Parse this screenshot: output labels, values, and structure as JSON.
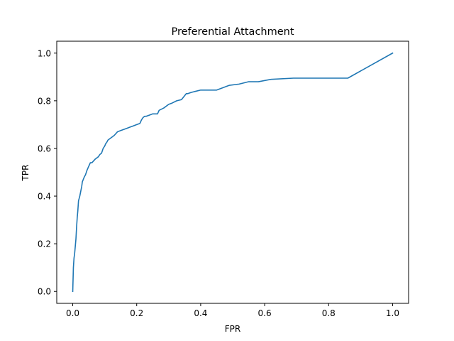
{
  "chart_data": {
    "type": "line",
    "title": "Preferential Attachment",
    "xlabel": "FPR",
    "ylabel": "TPR",
    "xlim": [
      -0.05,
      1.05
    ],
    "ylim": [
      -0.05,
      1.05
    ],
    "xticks": [
      0.0,
      0.2,
      0.4,
      0.6,
      0.8,
      1.0
    ],
    "yticks": [
      0.0,
      0.2,
      0.4,
      0.6,
      0.8,
      1.0
    ],
    "xtick_labels": [
      "0.0",
      "0.2",
      "0.4",
      "0.6",
      "0.8",
      "1.0"
    ],
    "ytick_labels": [
      "0.0",
      "0.2",
      "0.4",
      "0.6",
      "0.8",
      "1.0"
    ],
    "grid": false,
    "line_color": "#1f77b4",
    "series": [
      {
        "x": [
          0.0,
          0.001,
          0.002,
          0.004,
          0.006,
          0.008,
          0.01,
          0.012,
          0.014,
          0.016,
          0.018,
          0.02,
          0.022,
          0.025,
          0.028,
          0.03,
          0.033,
          0.036,
          0.04,
          0.045,
          0.05,
          0.055,
          0.06,
          0.07,
          0.075,
          0.08,
          0.085,
          0.09,
          0.095,
          0.1,
          0.103,
          0.106,
          0.11,
          0.115,
          0.12,
          0.13,
          0.14,
          0.15,
          0.16,
          0.17,
          0.18,
          0.19,
          0.2,
          0.21,
          0.215,
          0.22,
          0.225,
          0.23,
          0.24,
          0.25,
          0.265,
          0.27,
          0.285,
          0.3,
          0.31,
          0.325,
          0.34,
          0.355,
          0.36,
          0.37,
          0.385,
          0.4,
          0.45,
          0.47,
          0.49,
          0.52,
          0.55,
          0.58,
          0.62,
          0.69,
          0.86,
          1.0
        ],
        "y": [
          0.0,
          0.05,
          0.1,
          0.14,
          0.16,
          0.19,
          0.22,
          0.27,
          0.31,
          0.34,
          0.38,
          0.39,
          0.4,
          0.42,
          0.44,
          0.46,
          0.47,
          0.48,
          0.49,
          0.51,
          0.525,
          0.54,
          0.54,
          0.555,
          0.56,
          0.565,
          0.575,
          0.58,
          0.6,
          0.61,
          0.62,
          0.625,
          0.635,
          0.64,
          0.645,
          0.655,
          0.67,
          0.675,
          0.68,
          0.685,
          0.69,
          0.695,
          0.7,
          0.705,
          0.72,
          0.73,
          0.735,
          0.735,
          0.74,
          0.745,
          0.745,
          0.76,
          0.77,
          0.785,
          0.79,
          0.8,
          0.805,
          0.83,
          0.83,
          0.835,
          0.84,
          0.845,
          0.845,
          0.855,
          0.865,
          0.87,
          0.88,
          0.88,
          0.89,
          0.895,
          0.895,
          1.0
        ]
      }
    ]
  }
}
